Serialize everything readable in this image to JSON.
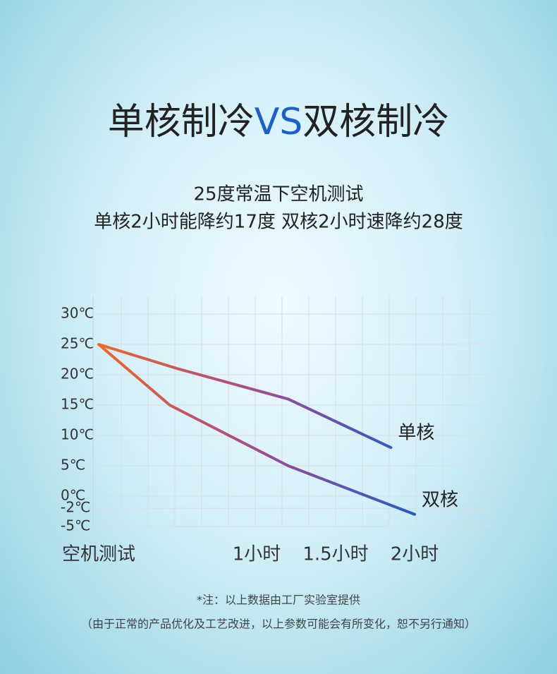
{
  "header": {
    "title_parts": [
      "单核制冷",
      "VS",
      "双核制冷"
    ],
    "subtitle": [
      "25度常温下空机测试",
      "单核2小时能降约17度  双核2小时速降约28度"
    ]
  },
  "chart_data": {
    "type": "line",
    "ylim": [
      -5,
      30
    ],
    "yticks": [
      {
        "value": 30,
        "label": "30℃"
      },
      {
        "value": 25,
        "label": "25℃"
      },
      {
        "value": 20,
        "label": "20℃"
      },
      {
        "value": 15,
        "label": "15℃"
      },
      {
        "value": 10,
        "label": "10℃"
      },
      {
        "value": 5,
        "label": "5℃"
      },
      {
        "value": 0,
        "label": "0℃"
      },
      {
        "value": -2,
        "label": "-2℃"
      },
      {
        "value": -5,
        "label": "-5℃"
      }
    ],
    "xlim": [
      0,
      2.5
    ],
    "xticks": [
      {
        "value": 0,
        "label": "空机测试"
      },
      {
        "value": 1,
        "label": "1小时"
      },
      {
        "value": 1.5,
        "label": "1.5小时"
      },
      {
        "value": 2,
        "label": "2小时"
      }
    ],
    "grid": true,
    "series": [
      {
        "name": "单核",
        "color": [
          "#f0652a",
          "#1f5fc8"
        ],
        "x": [
          0,
          0.5,
          1.2,
          1.85
        ],
        "values": [
          25,
          21,
          16,
          8
        ]
      },
      {
        "name": "双核",
        "color": [
          "#f0652a",
          "#1f5fc8"
        ],
        "x": [
          0,
          0.45,
          1.2,
          2
        ],
        "values": [
          25,
          15,
          5,
          -3
        ]
      }
    ]
  },
  "footer": {
    "note": "*注：以上数据由工厂实验室提供",
    "disclaimer": "（由于正常的产品优化及工艺改进，以上参数可能会有所变化，恕不另行通知）"
  }
}
